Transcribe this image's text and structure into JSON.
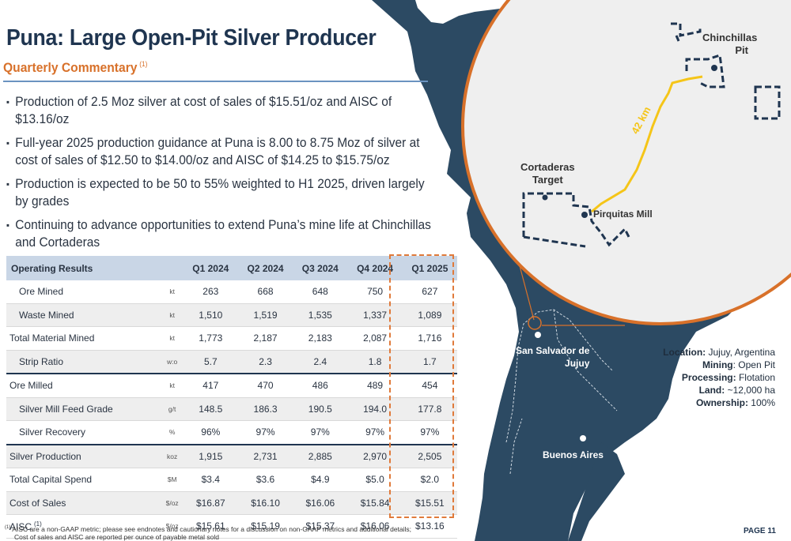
{
  "title": "Puna: Large Open-Pit Silver Producer",
  "subtitle": "Quarterly Commentary",
  "subtitle_note": "(1)",
  "bullets": [
    "Production of 2.5 Moz silver at cost of sales of $15.51/oz and AISC of $13.16/oz",
    "Full-year 2025 production guidance at Puna is 8.00 to 8.75 Moz of silver at cost of sales of $12.50 to $14.00/oz and AISC of $14.25 to $15.75/oz",
    "Production is expected to be 50 to 55% weighted to H1 2025, driven largely by grades",
    "Continuing to advance opportunities to extend Puna’s mine life at Chinchillas and Cortaderas"
  ],
  "table": {
    "header": [
      "Operating Results",
      "",
      "Q1 2024",
      "Q2 2024",
      "Q3 2024",
      "Q4 2024",
      "Q1 2025"
    ],
    "rows": [
      {
        "label": "Ore Mined",
        "unit": "kt",
        "values": [
          "263",
          "668",
          "648",
          "750",
          "627"
        ]
      },
      {
        "label": "Waste Mined",
        "unit": "kt",
        "values": [
          "1,510",
          "1,519",
          "1,535",
          "1,337",
          "1,089"
        ]
      },
      {
        "label": "Total Material Mined",
        "unit": "kt",
        "values": [
          "1,773",
          "2,187",
          "2,183",
          "2,087",
          "1,716"
        ]
      },
      {
        "label": "Strip Ratio",
        "unit": "w:o",
        "values": [
          "5.7",
          "2.3",
          "2.4",
          "1.8",
          "1.7"
        ]
      },
      {
        "label": "Ore Milled",
        "unit": "kt",
        "values": [
          "417",
          "470",
          "486",
          "489",
          "454"
        ]
      },
      {
        "label": "Silver Mill Feed Grade",
        "unit": "g/t",
        "values": [
          "148.5",
          "186.3",
          "190.5",
          "194.0",
          "177.8"
        ]
      },
      {
        "label": "Silver Recovery",
        "unit": "%",
        "values": [
          "96%",
          "97%",
          "97%",
          "97%",
          "97%"
        ]
      },
      {
        "label": "Silver Production",
        "unit": "koz",
        "values": [
          "1,915",
          "2,731",
          "2,885",
          "2,970",
          "2,505"
        ]
      },
      {
        "label": "Total Capital Spend",
        "unit": "$M",
        "values": [
          "$3.4",
          "$3.6",
          "$4.9",
          "$5.0",
          "$2.0"
        ]
      },
      {
        "label": "Cost of Sales",
        "unit": "$/oz",
        "values": [
          "$16.87",
          "$16.10",
          "$16.06",
          "$15.84",
          "$15.51"
        ]
      },
      {
        "label": "AISC",
        "note": "(1)",
        "unit": "$/oz",
        "values": [
          "$15.61",
          "$15.19",
          "$15.37",
          "$16.06",
          "$13.16"
        ]
      }
    ]
  },
  "footnote": {
    "marker": "(1)",
    "line1": "AISC are a non-GAAP metric; please see endnotes and cautionary notes for a discussion on non-GAAP metrics and additional details;",
    "line2": "Cost of sales and AISC are reported per ounce of payable metal sold"
  },
  "page_label": "PAGE 11",
  "map": {
    "inset_labels": {
      "chinchillas_1": "Chinchillas",
      "chinchillas_2": "Pit",
      "cortaderas_1": "Cortaderas",
      "cortaderas_2": "Target",
      "pirquitas": "Pirquitas Mill",
      "distance": "42 km"
    },
    "city_labels": {
      "san_salvador_1": "San Salvador de",
      "san_salvador_2": "Jujuy",
      "buenos_aires": "Buenos Aires"
    }
  },
  "info": {
    "location_label": "Location:",
    "location_value": "Jujuy, Argentina",
    "mining_label": "Mining",
    "mining_value": ": Open Pit",
    "processing_label": "Processing:",
    "processing_value": "Flotation",
    "land_label": "Land:",
    "land_value": "~12,000 ha",
    "ownership_label": "Ownership:",
    "ownership_value": "100%"
  },
  "colors": {
    "navy": "#1f3550",
    "orange": "#d8712a",
    "map": "#2c4a63",
    "road": "#f5c518"
  }
}
